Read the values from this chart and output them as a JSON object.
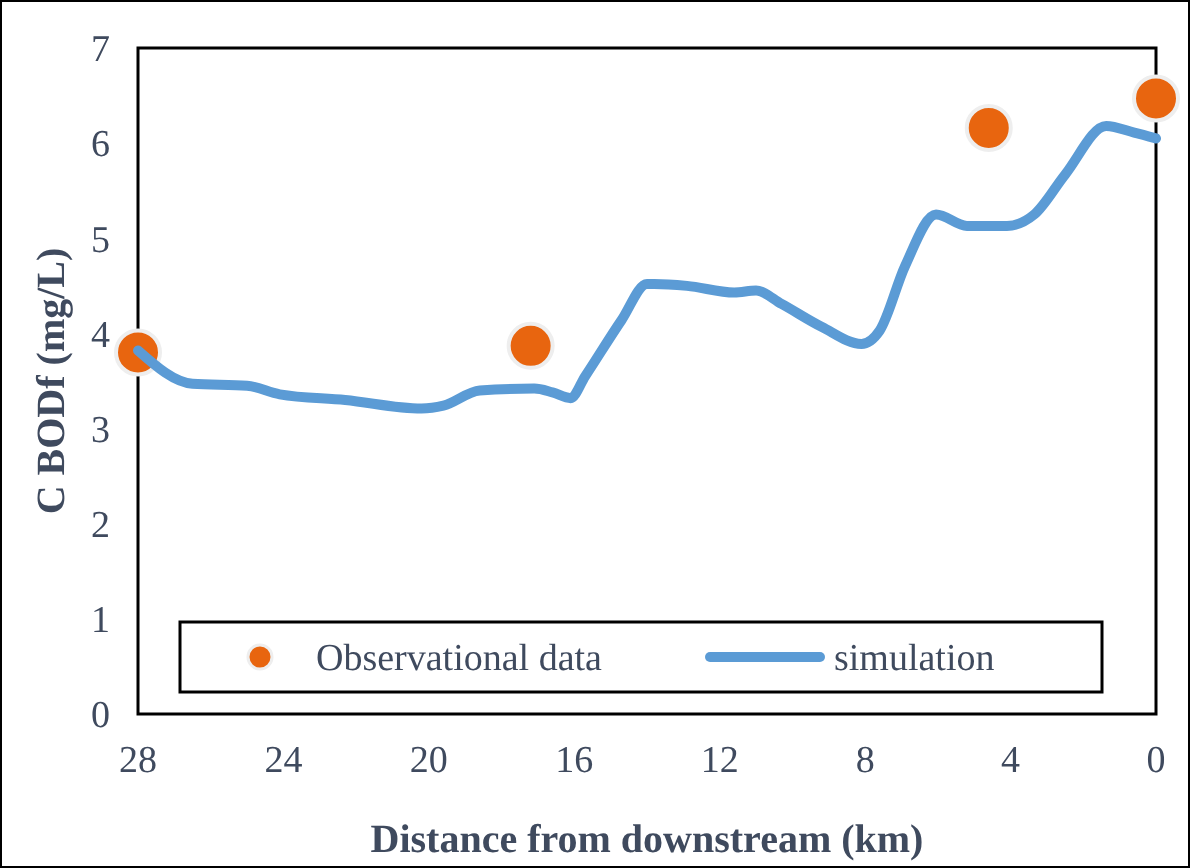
{
  "chart_data": {
    "type": "line",
    "xlabel": "Distance from downstream (km)",
    "ylabel": "C BODf (mg/L)",
    "xlim": [
      28,
      0
    ],
    "xticks": [
      28,
      24,
      20,
      16,
      12,
      8,
      4,
      0
    ],
    "ylim": [
      0,
      7
    ],
    "yticks": [
      0,
      1,
      2,
      3,
      4,
      5,
      6,
      7
    ],
    "grid": false,
    "legend": "bottom",
    "series": [
      {
        "name": "Observational data",
        "type": "scatter",
        "marker": "circle",
        "color": "#e8650f",
        "x": [
          28,
          17.2,
          4.6,
          0
        ],
        "values": [
          3.8,
          3.87,
          6.16,
          6.47
        ]
      },
      {
        "name": "simulation",
        "marker": "none",
        "line_style": "solid",
        "color": "#5b9bd5",
        "x": [
          28,
          26.5,
          25,
          24.1,
          22.3,
          20.2,
          19.6,
          18.6,
          17.1,
          16.6,
          16.1,
          15.7,
          14.7,
          14,
          13.8,
          12.9,
          11.6,
          11,
          10.3,
          9.2,
          8.1,
          7.6,
          6.9,
          6.05,
          5.2,
          4.1,
          3.35,
          2.5,
          1.37,
          0.6,
          0
        ],
        "values": [
          3.82,
          3.47,
          3.45,
          3.36,
          3.3,
          3.21,
          3.24,
          3.4,
          3.42,
          3.38,
          3.32,
          3.55,
          4.14,
          4.52,
          4.52,
          4.5,
          4.43,
          4.45,
          4.31,
          4.07,
          3.89,
          4.03,
          4.71,
          5.25,
          5.13,
          5.13,
          5.25,
          5.67,
          6.18,
          6.11,
          6.05
        ]
      }
    ]
  }
}
